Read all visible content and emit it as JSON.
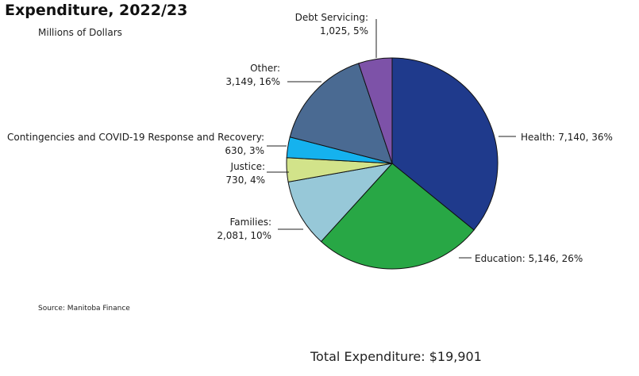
{
  "chart_data": {
    "type": "pie",
    "title": "Expenditure, 2022/23",
    "subtitle": "Millions of Dollars",
    "source": "Source: Manitoba Finance",
    "total_label": "Total Expenditure: $19,901",
    "slices": [
      {
        "name": "Health",
        "value": 7140,
        "percent": 36,
        "color": "#1f3a8c",
        "label_lines": [
          "Health: 7,140, 36%"
        ]
      },
      {
        "name": "Education",
        "value": 5146,
        "percent": 26,
        "color": "#28a745",
        "label_lines": [
          "Education: 5,146, 26%"
        ]
      },
      {
        "name": "Families",
        "value": 2081,
        "percent": 10,
        "color": "#97c8d8",
        "label_lines": [
          "Families:",
          "2,081, 10%"
        ]
      },
      {
        "name": "Justice",
        "value": 730,
        "percent": 4,
        "color": "#d2e38a",
        "label_lines": [
          "Justice:",
          "730, 4%"
        ]
      },
      {
        "name": "Contingencies and COVID-19 Response and Recovery",
        "value": 630,
        "percent": 3,
        "color": "#15b2ee",
        "label_lines": [
          "Contingencies and COVID-19 Response and Recovery:",
          "630, 3%"
        ]
      },
      {
        "name": "Other",
        "value": 3149,
        "percent": 16,
        "color": "#4a6a92",
        "label_lines": [
          "Other:",
          "3,149, 16%"
        ]
      },
      {
        "name": "Debt Servicing",
        "value": 1025,
        "percent": 5,
        "color": "#7d52a8",
        "label_lines": [
          "Debt Servicing:",
          "1,025, 5%"
        ]
      }
    ]
  }
}
